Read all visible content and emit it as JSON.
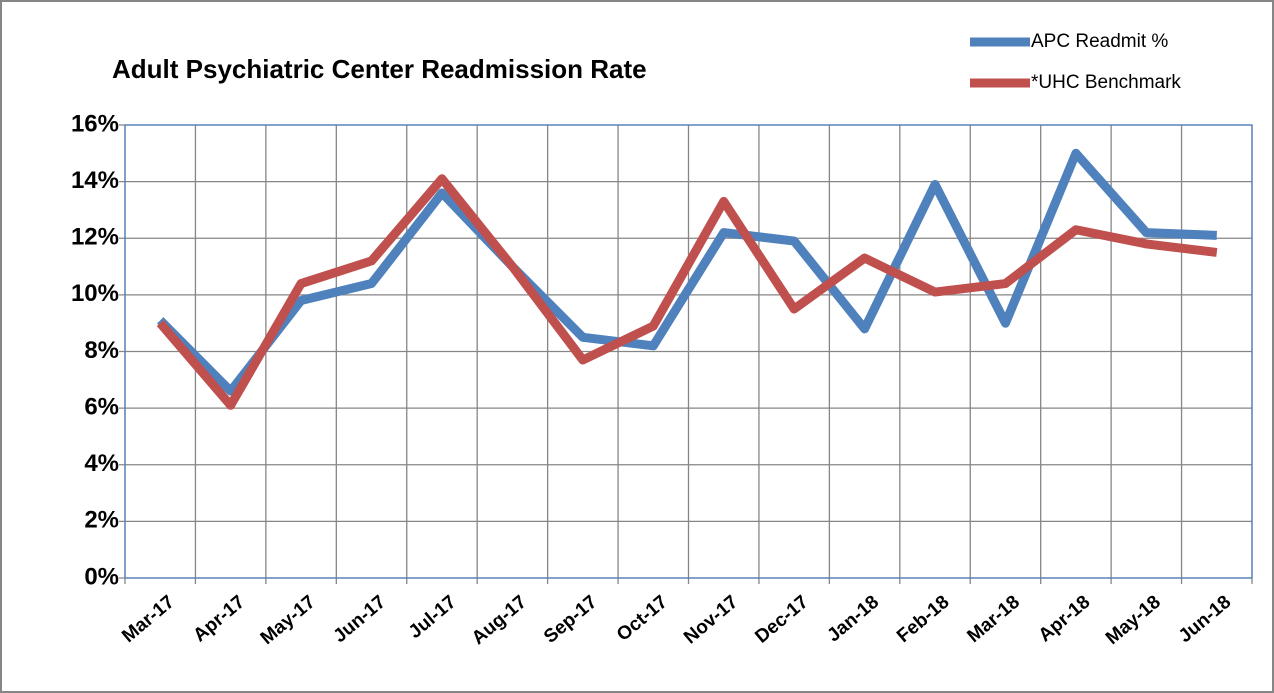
{
  "chart_data": {
    "type": "line",
    "title": "Adult Psychiatric Center Readmission Rate",
    "categories": [
      "Mar-17",
      "Apr-17",
      "May-17",
      "Jun-17",
      "Jul-17",
      "Aug-17",
      "Sep-17",
      "Oct-17",
      "Nov-17",
      "Dec-17",
      "Jan-18",
      "Feb-18",
      "Mar-18",
      "Apr-18",
      "May-18",
      "Jun-18"
    ],
    "series": [
      {
        "name": "APC Readmit %",
        "color": "#4f81bd",
        "values": [
          9.1,
          6.6,
          9.8,
          10.4,
          13.6,
          11.0,
          8.5,
          8.2,
          12.2,
          11.9,
          8.8,
          13.9,
          9.0,
          15.0,
          12.2,
          12.1
        ]
      },
      {
        "name": "*UHC Benchmark",
        "color": "#c0504d",
        "values": [
          9.0,
          6.1,
          10.4,
          11.2,
          14.1,
          11.0,
          7.7,
          8.9,
          13.3,
          9.5,
          11.3,
          10.1,
          10.4,
          12.3,
          11.8,
          11.5
        ]
      }
    ],
    "ylim": [
      0,
      16
    ],
    "yticks": [
      {
        "value": 0,
        "label": "0%"
      },
      {
        "value": 2,
        "label": "2%"
      },
      {
        "value": 4,
        "label": "4%"
      },
      {
        "value": 6,
        "label": "6%"
      },
      {
        "value": 8,
        "label": "8%"
      },
      {
        "value": 10,
        "label": "10%"
      },
      {
        "value": 12,
        "label": "12%"
      },
      {
        "value": 14,
        "label": "14%"
      },
      {
        "value": 16,
        "label": "16%"
      }
    ],
    "grid": true,
    "legend": "top-right"
  }
}
